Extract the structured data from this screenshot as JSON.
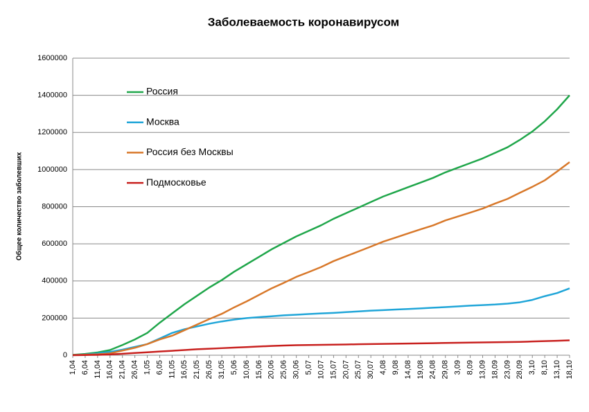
{
  "chart_data": {
    "type": "line",
    "title": "Заболеваемость коронавирусом",
    "y_label": "Общее количество заболевших",
    "categories": [
      "1,04",
      "6,04",
      "11,04",
      "16,04",
      "21,04",
      "26,04",
      "1,05",
      "6,05",
      "11,05",
      "16,05",
      "21,05",
      "26,05",
      "31,05",
      "5,06",
      "10,06",
      "15,06",
      "20,06",
      "25,06",
      "30,06",
      "5,07",
      "10,07",
      "15,07",
      "20,07",
      "25,07",
      "30,07",
      "4,08",
      "9,08",
      "14,08",
      "19,08",
      "24,08",
      "29,08",
      "3,09",
      "8,09",
      "13,09",
      "18,09",
      "23,09",
      "28,09",
      "3,10",
      "8,10",
      "13,10",
      "18,10"
    ],
    "series": [
      {
        "name": "Россия",
        "color": "#1fa64a",
        "values": [
          2000,
          7000,
          15000,
          28000,
          55000,
          85000,
          120000,
          175000,
          225000,
          275000,
          320000,
          365000,
          405000,
          450000,
          490000,
          530000,
          570000,
          605000,
          640000,
          670000,
          700000,
          735000,
          765000,
          795000,
          825000,
          855000,
          880000,
          905000,
          930000,
          955000,
          985000,
          1010000,
          1035000,
          1060000,
          1090000,
          1120000,
          1160000,
          1205000,
          1260000,
          1325000,
          1400000
        ]
      },
      {
        "name": "Москва",
        "color": "#1fa5d8",
        "values": [
          1000,
          4000,
          10000,
          18000,
          30000,
          45000,
          60000,
          90000,
          120000,
          140000,
          155000,
          170000,
          182000,
          192000,
          200000,
          205000,
          210000,
          215000,
          218000,
          222000,
          225000,
          228000,
          232000,
          236000,
          240000,
          243000,
          246000,
          249000,
          252000,
          256000,
          259000,
          263000,
          267000,
          270000,
          273000,
          278000,
          285000,
          298000,
          318000,
          335000,
          360000
        ]
      },
      {
        "name": "Россия без Москвы",
        "color": "#d8782a",
        "values": [
          1000,
          3000,
          5000,
          10000,
          25000,
          40000,
          60000,
          85000,
          105000,
          135000,
          165000,
          195000,
          223000,
          258000,
          290000,
          325000,
          360000,
          390000,
          422000,
          448000,
          475000,
          507000,
          533000,
          559000,
          585000,
          612000,
          634000,
          656000,
          678000,
          699000,
          726000,
          747000,
          768000,
          790000,
          817000,
          842000,
          875000,
          907000,
          942000,
          990000,
          1040000
        ]
      },
      {
        "name": "Подмосковье",
        "color": "#c8201e",
        "values": [
          0,
          1000,
          2000,
          4000,
          8000,
          12000,
          16000,
          20000,
          24000,
          28000,
          32000,
          35000,
          38000,
          41000,
          44000,
          47000,
          50000,
          52000,
          54000,
          55000,
          56000,
          57000,
          58000,
          59000,
          60000,
          61000,
          62000,
          63000,
          64000,
          65000,
          66000,
          67000,
          68000,
          69000,
          70000,
          71000,
          72000,
          74000,
          76000,
          78000,
          80000
        ]
      }
    ],
    "ylim": [
      0,
      1600000
    ],
    "yticks": [
      0,
      200000,
      400000,
      600000,
      800000,
      1000000,
      1200000,
      1400000,
      1600000
    ],
    "grid": true
  }
}
